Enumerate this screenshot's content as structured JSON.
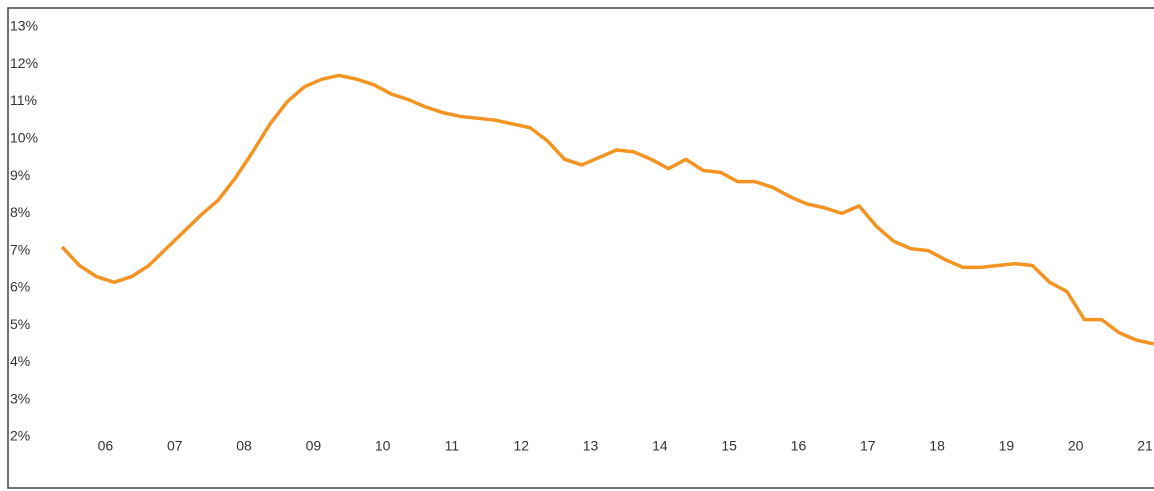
{
  "chart_data": {
    "type": "line",
    "x": [
      2005.875,
      2006.125,
      2006.375,
      2006.625,
      2006.875,
      2007.125,
      2007.375,
      2007.625,
      2007.875,
      2008.125,
      2008.375,
      2008.625,
      2008.875,
      2009.125,
      2009.375,
      2009.625,
      2009.875,
      2010.125,
      2010.375,
      2010.625,
      2010.875,
      2011.125,
      2011.375,
      2011.625,
      2011.875,
      2012.125,
      2012.375,
      2012.625,
      2012.875,
      2013.125,
      2013.375,
      2013.625,
      2013.875,
      2014.125,
      2014.375,
      2014.625,
      2014.875,
      2015.125,
      2015.375,
      2015.625,
      2015.875,
      2016.125,
      2016.375,
      2016.625,
      2016.875,
      2017.125,
      2017.375,
      2017.625,
      2017.875,
      2018.125,
      2018.375,
      2018.625,
      2018.875,
      2019.125,
      2019.375,
      2019.625,
      2019.875,
      2020.125,
      2020.375,
      2020.625,
      2020.875,
      2021.125,
      2021.375,
      2021.625
    ],
    "series": [
      {
        "color": "#f39322",
        "values": [
          7.1,
          6.6,
          6.3,
          6.15,
          6.3,
          6.6,
          7.05,
          7.5,
          7.95,
          8.35,
          8.95,
          9.65,
          10.4,
          11.0,
          11.4,
          11.6,
          11.7,
          11.6,
          11.45,
          11.2,
          11.05,
          10.85,
          10.7,
          10.6,
          10.55,
          10.5,
          10.4,
          10.3,
          9.95,
          9.45,
          9.3,
          9.5,
          9.7,
          9.65,
          9.45,
          9.2,
          9.45,
          9.15,
          9.1,
          8.85,
          8.85,
          8.7,
          8.45,
          8.25,
          8.15,
          8.0,
          8.2,
          7.65,
          7.25,
          7.05,
          7.0,
          6.75,
          6.55,
          6.55,
          6.6,
          6.65,
          6.6,
          6.15,
          5.9,
          5.15,
          5.15,
          4.8,
          4.6,
          4.5
        ]
      }
    ],
    "xlim": [
      2005.7,
      2021.63
    ],
    "xticks": [
      {
        "value": 2006.5,
        "label": "06"
      },
      {
        "value": 2007.5,
        "label": "07"
      },
      {
        "value": 2008.5,
        "label": "08"
      },
      {
        "value": 2009.5,
        "label": "09"
      },
      {
        "value": 2010.5,
        "label": "10"
      },
      {
        "value": 2011.5,
        "label": "11"
      },
      {
        "value": 2012.5,
        "label": "12"
      },
      {
        "value": 2013.5,
        "label": "13"
      },
      {
        "value": 2014.5,
        "label": "14"
      },
      {
        "value": 2015.5,
        "label": "15"
      },
      {
        "value": 2016.5,
        "label": "16"
      },
      {
        "value": 2017.5,
        "label": "17"
      },
      {
        "value": 2018.5,
        "label": "18"
      },
      {
        "value": 2019.5,
        "label": "19"
      },
      {
        "value": 2020.5,
        "label": "20"
      },
      {
        "value": 2021.5,
        "label": "21"
      }
    ],
    "ylim": [
      2,
      13
    ],
    "yticks": [
      {
        "value": 2,
        "label": "2%"
      },
      {
        "value": 3,
        "label": "3%"
      },
      {
        "value": 4,
        "label": "4%"
      },
      {
        "value": 5,
        "label": "5%"
      },
      {
        "value": 6,
        "label": "6%"
      },
      {
        "value": 7,
        "label": "7%"
      },
      {
        "value": 8,
        "label": "8%"
      },
      {
        "value": 9,
        "label": "9%"
      },
      {
        "value": 10,
        "label": "10%"
      },
      {
        "value": 11,
        "label": "11%"
      },
      {
        "value": 12,
        "label": "12%"
      },
      {
        "value": 13,
        "label": "13%"
      }
    ]
  }
}
